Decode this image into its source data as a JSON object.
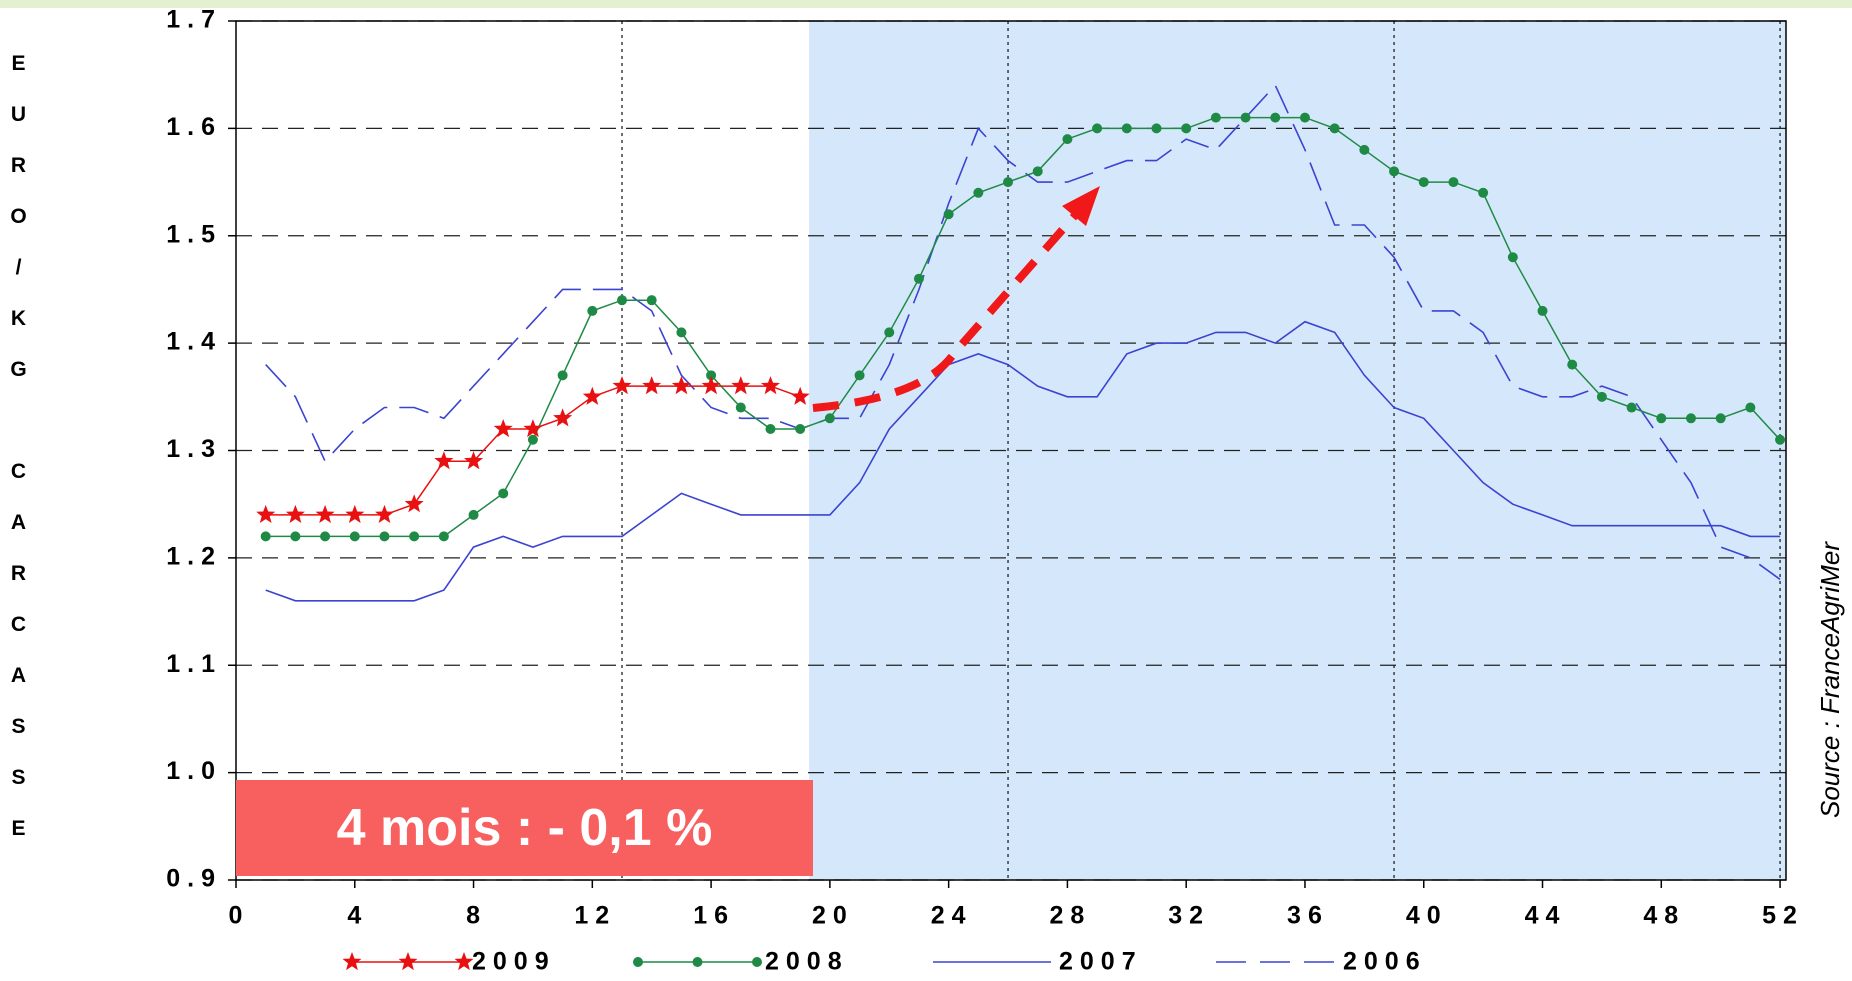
{
  "chart_data": {
    "type": "line",
    "y_label": "EURO/KG CARCASSE",
    "source": "Source : FranceAgriMer",
    "annotation": "4 mois : - 0,1 %",
    "x": [
      1,
      2,
      3,
      4,
      5,
      6,
      7,
      8,
      9,
      10,
      11,
      12,
      13,
      14,
      15,
      16,
      17,
      18,
      19,
      20,
      21,
      22,
      23,
      24,
      25,
      26,
      27,
      28,
      29,
      30,
      31,
      32,
      33,
      34,
      35,
      36,
      37,
      38,
      39,
      40,
      41,
      42,
      43,
      44,
      45,
      46,
      47,
      48,
      49,
      50,
      51,
      52
    ],
    "series": [
      {
        "name": "2009",
        "color": "#e81010",
        "marker": "star",
        "dashed": false,
        "values": [
          1.24,
          1.24,
          1.24,
          1.24,
          1.24,
          1.25,
          1.29,
          1.29,
          1.32,
          1.32,
          1.33,
          1.35,
          1.36,
          1.36,
          1.36,
          1.36,
          1.36,
          1.36,
          1.35,
          null,
          null,
          null,
          null,
          null,
          null,
          null,
          null,
          null,
          null,
          null,
          null,
          null,
          null,
          null,
          null,
          null,
          null,
          null,
          null,
          null,
          null,
          null,
          null,
          null,
          null,
          null,
          null,
          null,
          null,
          null,
          null,
          null
        ]
      },
      {
        "name": "2008",
        "color": "#1f8a45",
        "marker": "circle",
        "dashed": false,
        "values": [
          1.22,
          1.22,
          1.22,
          1.22,
          1.22,
          1.22,
          1.22,
          1.24,
          1.26,
          1.31,
          1.37,
          1.43,
          1.44,
          1.44,
          1.41,
          1.37,
          1.34,
          1.32,
          1.32,
          1.33,
          1.37,
          1.41,
          1.46,
          1.52,
          1.54,
          1.55,
          1.56,
          1.59,
          1.6,
          1.6,
          1.6,
          1.6,
          1.61,
          1.61,
          1.61,
          1.61,
          1.6,
          1.58,
          1.56,
          1.55,
          1.55,
          1.54,
          1.48,
          1.43,
          1.38,
          1.35,
          1.34,
          1.33,
          1.33,
          1.33,
          1.34,
          1.31
        ]
      },
      {
        "name": "2007",
        "color": "#3a44d0",
        "marker": null,
        "dashed": false,
        "values": [
          1.17,
          1.16,
          1.16,
          1.16,
          1.16,
          1.16,
          1.17,
          1.21,
          1.22,
          1.21,
          1.22,
          1.22,
          1.22,
          1.24,
          1.26,
          1.25,
          1.24,
          1.24,
          1.24,
          1.24,
          1.27,
          1.32,
          1.35,
          1.38,
          1.39,
          1.38,
          1.36,
          1.35,
          1.35,
          1.39,
          1.4,
          1.4,
          1.41,
          1.41,
          1.4,
          1.42,
          1.41,
          1.37,
          1.34,
          1.33,
          1.3,
          1.27,
          1.25,
          1.24,
          1.23,
          1.23,
          1.23,
          1.23,
          1.23,
          1.23,
          1.22,
          1.22
        ]
      },
      {
        "name": "2006",
        "color": "#3a44d0",
        "marker": null,
        "dashed": true,
        "values": [
          1.38,
          1.35,
          1.29,
          1.32,
          1.34,
          1.34,
          1.33,
          1.36,
          1.39,
          1.42,
          1.45,
          1.45,
          1.45,
          1.43,
          1.37,
          1.34,
          1.33,
          1.33,
          1.32,
          1.33,
          1.33,
          1.38,
          1.45,
          1.53,
          1.6,
          1.57,
          1.55,
          1.55,
          1.56,
          1.57,
          1.57,
          1.59,
          1.58,
          1.61,
          1.64,
          1.58,
          1.51,
          1.51,
          1.48,
          1.43,
          1.43,
          1.41,
          1.36,
          1.35,
          1.35,
          1.36,
          1.35,
          1.31,
          1.27,
          1.21,
          1.2,
          1.18
        ]
      }
    ],
    "xlim": [
      0,
      52.2
    ],
    "xticks": [
      0,
      4,
      8,
      12,
      16,
      20,
      24,
      28,
      32,
      36,
      40,
      44,
      48,
      52
    ],
    "ylim": [
      0.9,
      1.7
    ],
    "yticks": [
      0.9,
      {
        "value": 1,
        "label": "1.0"
      },
      1.1,
      1.2,
      1.3,
      1.4,
      1.5,
      1.6,
      1.7
    ],
    "grid": true,
    "x_reference_lines": [
      13,
      26,
      39,
      52
    ],
    "shaded_region": {
      "x": [
        19.3,
        52.2
      ],
      "color": "#d5e8fb"
    },
    "legend": "bottom"
  }
}
